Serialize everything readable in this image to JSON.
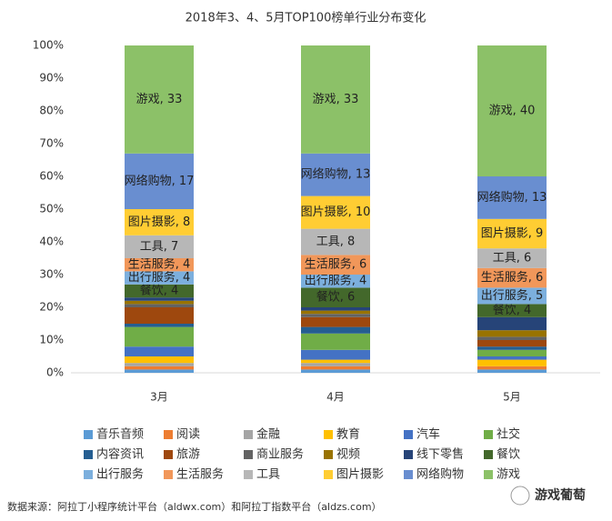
{
  "chart_data": {
    "type": "stacked_bar",
    "title": "2018年3、4、5月TOP100榜单行业分布变化",
    "categories": [
      "3月",
      "4月",
      "5月"
    ],
    "ylim": [
      0,
      100
    ],
    "yticks": [
      {
        "value": 0,
        "label": "0%"
      },
      {
        "value": 10,
        "label": "10%"
      },
      {
        "value": 20,
        "label": "20%"
      },
      {
        "value": 30,
        "label": "30%"
      },
      {
        "value": 40,
        "label": "40%"
      },
      {
        "value": 50,
        "label": "50%"
      },
      {
        "value": 60,
        "label": "60%"
      },
      {
        "value": 70,
        "label": "70%"
      },
      {
        "value": 80,
        "label": "80%"
      },
      {
        "value": 90,
        "label": "90%"
      },
      {
        "value": 100,
        "label": "100%"
      }
    ],
    "legend": "bottom",
    "series": [
      {
        "name": "音乐音频",
        "color": "#5b9bd5",
        "values": [
          1,
          1,
          1
        ]
      },
      {
        "name": "阅读",
        "color": "#ed7d31",
        "values": [
          1,
          1,
          1
        ]
      },
      {
        "name": "金融",
        "color": "#a5a5a5",
        "values": [
          1,
          1,
          0
        ]
      },
      {
        "name": "教育",
        "color": "#ffc000",
        "values": [
          2,
          1,
          2
        ]
      },
      {
        "name": "汽车",
        "color": "#4472c4",
        "values": [
          3,
          3,
          1
        ]
      },
      {
        "name": "社交",
        "color": "#70ad47",
        "values": [
          6,
          5,
          2
        ]
      },
      {
        "name": "内容资讯",
        "color": "#255e91",
        "values": [
          1,
          2,
          1
        ]
      },
      {
        "name": "旅游",
        "color": "#9e480e",
        "values": [
          5,
          3,
          2
        ]
      },
      {
        "name": "商业服务",
        "color": "#636363",
        "values": [
          1,
          1,
          1
        ]
      },
      {
        "name": "视频",
        "color": "#997300",
        "values": [
          1,
          1,
          2
        ]
      },
      {
        "name": "线下零售",
        "color": "#264478",
        "values": [
          1,
          1,
          4
        ]
      },
      {
        "name": "餐饮",
        "color": "#43682b",
        "values": [
          4,
          6,
          4
        ],
        "value_labels": [
          "餐饮, 4",
          "餐饮, 6",
          "餐饮, 4"
        ]
      },
      {
        "name": "出行服务",
        "color": "#7cafdd",
        "values": [
          4,
          4,
          5
        ],
        "value_labels": [
          "出行服务, 4",
          "出行服务, 4",
          "出行服务, 5"
        ]
      },
      {
        "name": "生活服务",
        "color": "#f1975a",
        "values": [
          4,
          6,
          6
        ],
        "value_labels": [
          "生活服务, 4",
          "生活服务, 6",
          "生活服务, 6"
        ]
      },
      {
        "name": "工具",
        "color": "#b7b7b7",
        "values": [
          7,
          8,
          6
        ],
        "value_labels": [
          "工具, 7",
          "工具, 8",
          "工具, 6"
        ]
      },
      {
        "name": "图片摄影",
        "color": "#ffcd33",
        "values": [
          8,
          10,
          9
        ],
        "value_labels": [
          "图片摄影, 8",
          "图片摄影, 10",
          "图片摄影, 9"
        ]
      },
      {
        "name": "网络购物",
        "color": "#698ed0",
        "values": [
          17,
          13,
          13
        ],
        "value_labels": [
          "网络购物, 17",
          "网络购物, 13",
          "网络购物, 13"
        ]
      },
      {
        "name": "游戏",
        "color": "#8cc168",
        "values": [
          33,
          33,
          40
        ],
        "value_labels": [
          "游戏, 33",
          "游戏, 33",
          "游戏, 40"
        ]
      }
    ],
    "source": "数据来源：阿拉丁小程序统计平台（aldwx.com）和阿拉丁指数平台（aldzs.com）",
    "brand": "游戏葡萄"
  }
}
